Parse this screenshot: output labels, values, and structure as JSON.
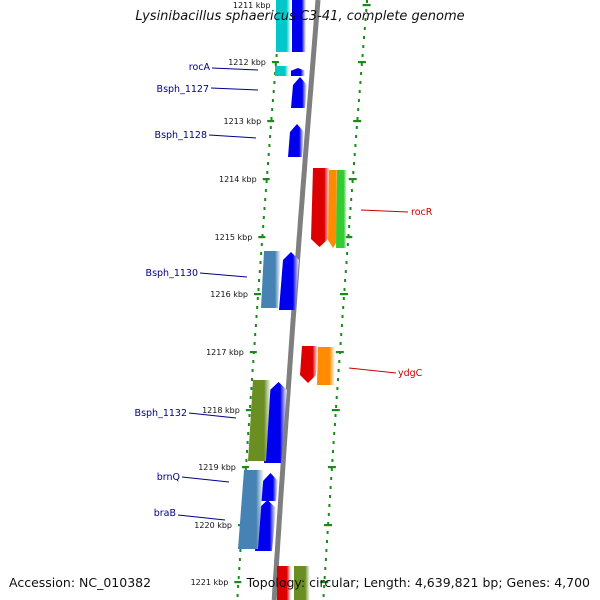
{
  "title": "Lysinibacillus sphaericus C3-41, complete genome",
  "accession": "Accession: NC_010382",
  "topology": "Topology: circular; Length: 4,639,821 bp; Genes: 4,700",
  "colors": {
    "backbone": "#7f7f7f",
    "forward_label": "#00008b",
    "reverse_label": "#cc0000",
    "dots": "#1a8a1a",
    "blue": "#0000ee",
    "steelblue": "#4682b4",
    "cyan": "#00c8c8",
    "olive": "#6b8e23",
    "red": "#dd0000",
    "orange": "#ff8c00",
    "green": "#32cd32"
  },
  "ticks": [
    "1211 kbp",
    "1212 kbp",
    "1213 kbp",
    "1214 kbp",
    "1215 kbp",
    "1216 kbp",
    "1217 kbp",
    "1218 kbp",
    "1219 kbp",
    "1220 kbp",
    "1221 kbp"
  ],
  "gene_labels": [
    {
      "name": "rocA",
      "strand": "forward"
    },
    {
      "name": "Bsph_1127",
      "strand": "forward"
    },
    {
      "name": "Bsph_1128",
      "strand": "forward"
    },
    {
      "name": "rocR",
      "strand": "reverse"
    },
    {
      "name": "Bsph_1130",
      "strand": "forward"
    },
    {
      "name": "ydgC",
      "strand": "reverse"
    },
    {
      "name": "Bsph_1132",
      "strand": "forward"
    },
    {
      "name": "brnQ",
      "strand": "forward"
    },
    {
      "name": "braB",
      "strand": "forward"
    }
  ]
}
